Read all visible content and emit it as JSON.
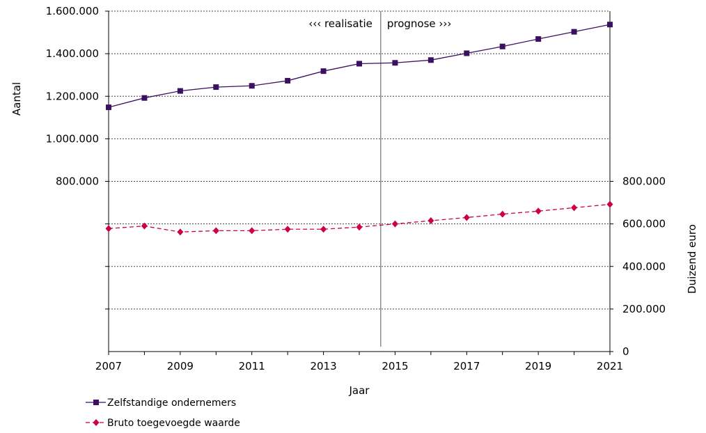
{
  "chart_data": {
    "type": "line",
    "x": [
      2007,
      2008,
      2009,
      2010,
      2011,
      2012,
      2013,
      2014,
      2015,
      2016,
      2017,
      2018,
      2019,
      2020,
      2021
    ],
    "x_tick_labels": [
      "2007",
      "2009",
      "2011",
      "2013",
      "2015",
      "2017",
      "2019",
      "2021"
    ],
    "xlabel": "Jaar",
    "xlim": [
      2007,
      2021
    ],
    "y_left": {
      "label": "Aantal",
      "ylim": [
        0,
        1600000
      ],
      "tick_labels": [
        "1.600.000",
        "1.400.000",
        "1.200.000",
        "1.000.000",
        "800.000"
      ],
      "tick_values": [
        1600000,
        1400000,
        1200000,
        1000000,
        800000
      ]
    },
    "y_right": {
      "label": "Duizend euro",
      "ylim": [
        0,
        1600000
      ],
      "tick_labels": [
        "800.000",
        "600.000",
        "400.000",
        "200.000",
        "0"
      ],
      "tick_values": [
        800000,
        600000,
        400000,
        200000,
        0
      ]
    },
    "grid_values": [
      1600000,
      1400000,
      1200000,
      1000000,
      800000,
      600000,
      400000,
      200000
    ],
    "divider_x": 2014.6,
    "annotations": {
      "left": "‹‹‹ realisatie",
      "right": "prognose ›››"
    },
    "series": [
      {
        "name": "Zelfstandige ondernemers",
        "axis": "left",
        "color": "#3b1060",
        "marker": "square",
        "dash": "solid",
        "values": [
          1148000,
          1192000,
          1225000,
          1243000,
          1249000,
          1273000,
          1318000,
          1353000,
          1357000,
          1370000,
          1402000,
          1434000,
          1469000,
          1503000,
          1537000
        ]
      },
      {
        "name": "Bruto toegevoegde waarde",
        "axis": "right",
        "color": "#cc0044",
        "marker": "diamond",
        "dash": "dashed",
        "values": [
          578000,
          590000,
          562000,
          568000,
          568000,
          575000,
          575000,
          585000,
          600000,
          615000,
          630000,
          646000,
          660000,
          676000,
          692000
        ]
      }
    ],
    "legend_placement": "bottom-left"
  }
}
